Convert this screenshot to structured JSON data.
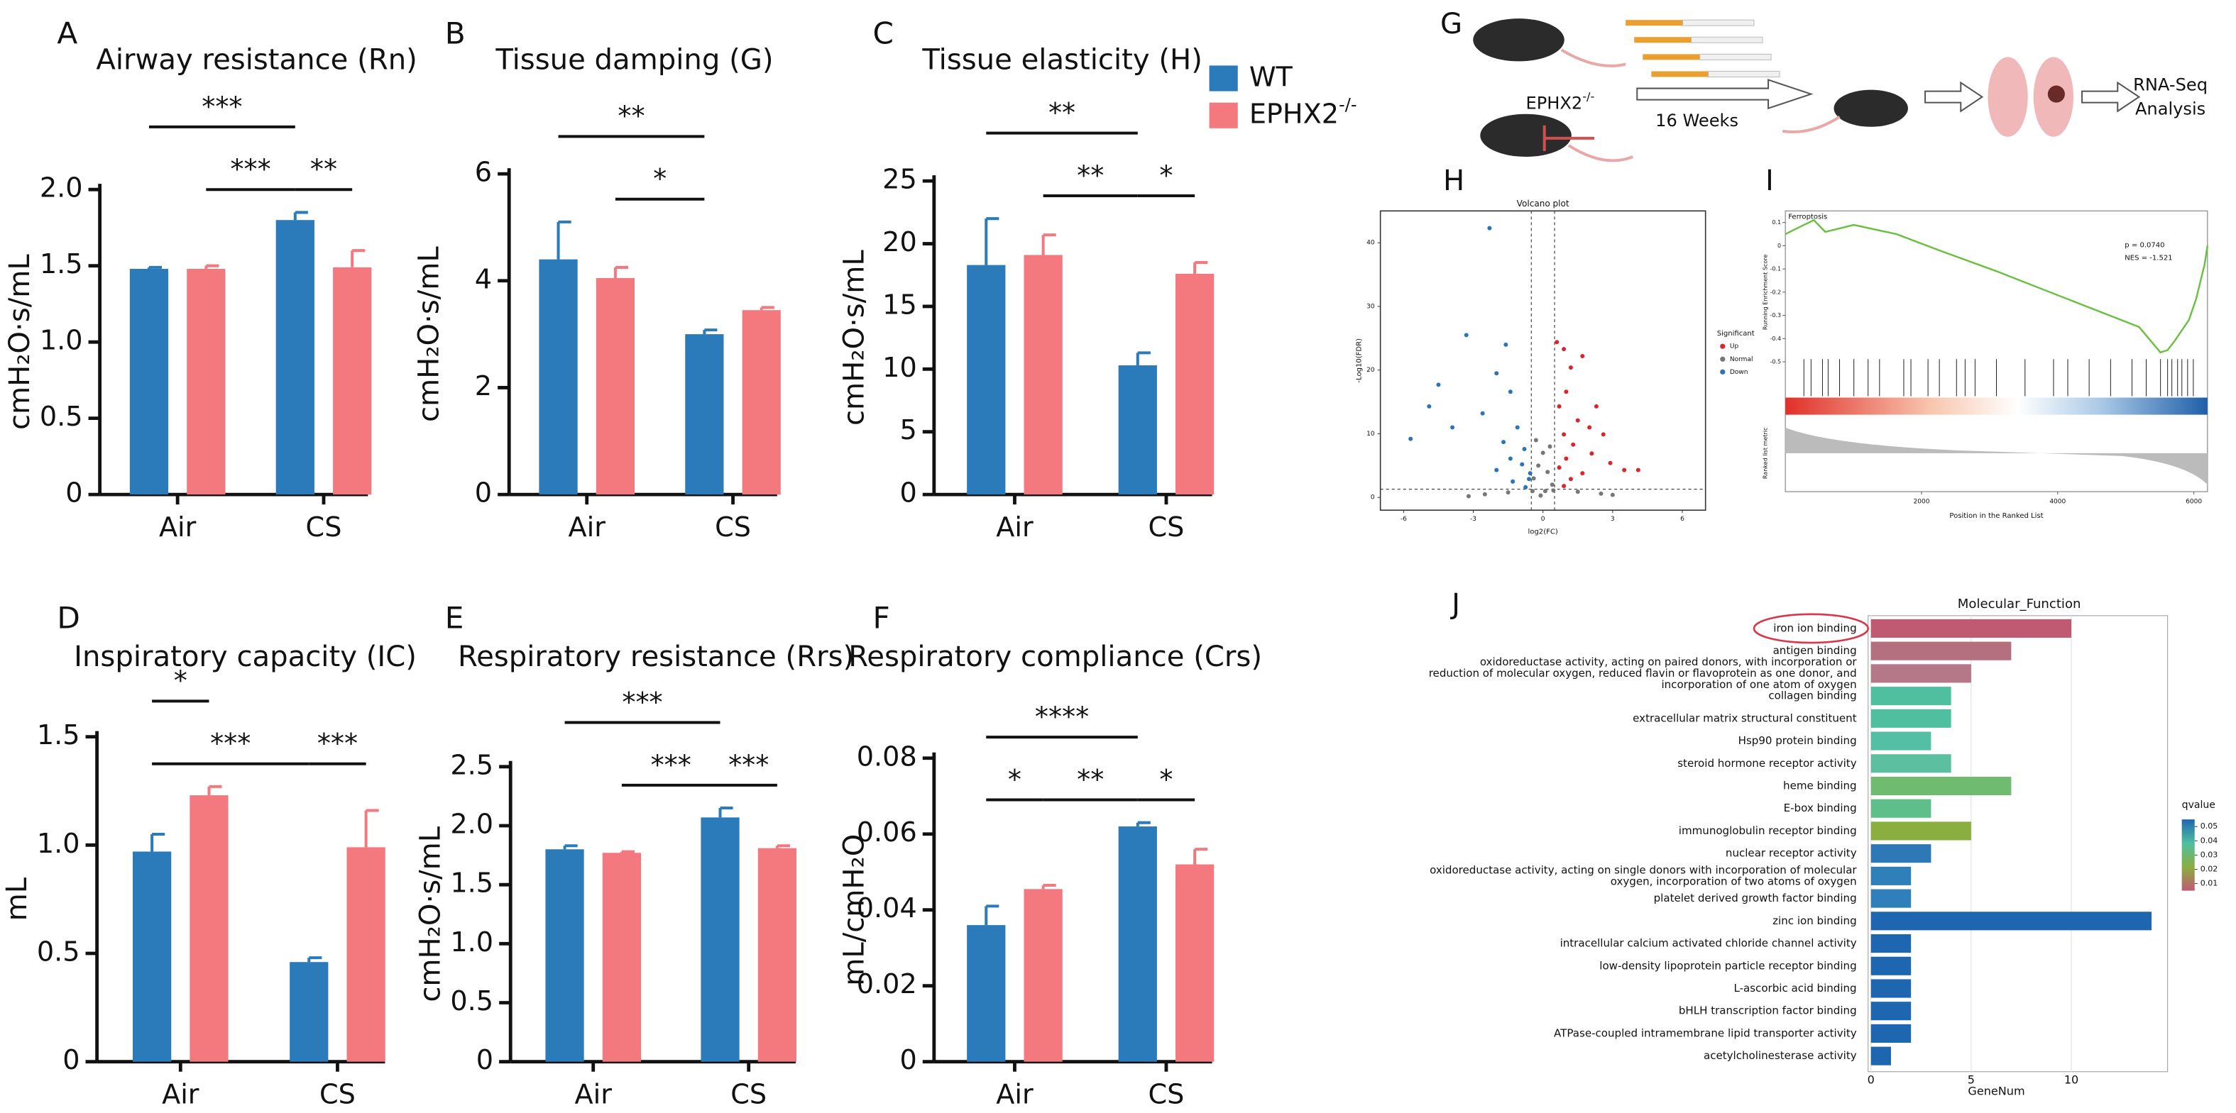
{
  "legend": {
    "items": [
      {
        "name": "WT",
        "color": "#2b7bba"
      },
      {
        "name": "EPHX2",
        "superscript": "-/-",
        "color": "#f4797f"
      }
    ]
  },
  "schematic": {
    "panel": "G",
    "genotype": "EPHX2",
    "superscript": "-/-",
    "duration": "16 Weeks",
    "output": [
      "RNA-Seq",
      "Analysis"
    ]
  },
  "chart_data": [
    {
      "type": "bar",
      "panel": "A",
      "title": "Airway resistance (Rn)",
      "ylabel": "cmH₂O·s/mL",
      "categories": [
        "Air",
        "CS"
      ],
      "series": [
        {
          "values": [
            1.48,
            1.8
          ],
          "errors": [
            0.01,
            0.05
          ]
        },
        {
          "values": [
            1.48,
            1.49
          ],
          "errors": [
            0.02,
            0.11
          ]
        }
      ],
      "ylim": [
        0,
        2
      ],
      "yticks": [
        0,
        0.5,
        {
          "value": 1,
          "label": "1.0"
        },
        1.5,
        {
          "value": 2,
          "label": "2.0"
        }
      ],
      "brackets": [
        {
          "between": [
            [
              0,
              1
            ],
            [
              1,
              0
            ]
          ],
          "label": "***"
        },
        {
          "between": [
            [
              1,
              0
            ],
            [
              1,
              1
            ]
          ],
          "label": "**"
        },
        {
          "between": [
            [
              0,
              0
            ],
            [
              1,
              0
            ]
          ],
          "label": "***"
        }
      ]
    },
    {
      "type": "bar",
      "panel": "B",
      "title": "Tissue damping (G)",
      "ylabel": "cmH₂O·s/mL",
      "categories": [
        "Air",
        "CS"
      ],
      "series": [
        {
          "values": [
            4.4,
            3.0
          ],
          "errors": [
            0.7,
            0.08
          ]
        },
        {
          "values": [
            4.05,
            3.45
          ],
          "errors": [
            0.2,
            0.05
          ]
        }
      ],
      "ylim": [
        0,
        6
      ],
      "yticks": [
        0,
        2,
        4,
        6
      ],
      "brackets": [
        {
          "between": [
            [
              0,
              1
            ],
            [
              1,
              0
            ]
          ],
          "label": "*"
        },
        {
          "between": [
            [
              0,
              0
            ],
            [
              1,
              0
            ]
          ],
          "label": "**"
        }
      ]
    },
    {
      "type": "bar",
      "panel": "C",
      "title": "Tissue elasticity (H)",
      "ylabel": "cmH₂O·s/mL",
      "categories": [
        "Air",
        "CS"
      ],
      "series": [
        {
          "values": [
            18.3,
            10.3
          ],
          "errors": [
            3.7,
            1.0
          ]
        },
        {
          "values": [
            19.1,
            17.6
          ],
          "errors": [
            1.6,
            0.9
          ]
        }
      ],
      "ylim": [
        0,
        25
      ],
      "yticks": [
        0,
        5,
        10,
        15,
        20,
        25
      ],
      "brackets": [
        {
          "between": [
            [
              0,
              1
            ],
            [
              1,
              0
            ]
          ],
          "label": "**"
        },
        {
          "between": [
            [
              1,
              0
            ],
            [
              1,
              1
            ]
          ],
          "label": "*"
        },
        {
          "between": [
            [
              0,
              0
            ],
            [
              1,
              0
            ]
          ],
          "label": "**"
        }
      ]
    },
    {
      "type": "bar",
      "panel": "D",
      "title": "Inspiratory capacity (IC)",
      "ylabel": "mL",
      "categories": [
        "Air",
        "CS"
      ],
      "series": [
        {
          "values": [
            0.97,
            0.46
          ],
          "errors": [
            0.08,
            0.02
          ]
        },
        {
          "values": [
            1.23,
            0.99
          ],
          "errors": [
            0.04,
            0.17
          ]
        }
      ],
      "ylim": [
        0,
        1.5
      ],
      "yticks": [
        0,
        0.5,
        {
          "value": 1,
          "label": "1.0"
        },
        1.5
      ],
      "brackets": [
        {
          "between": [
            [
              0,
              0
            ],
            [
              1,
              0
            ]
          ],
          "label": "***"
        },
        {
          "between": [
            [
              0,
              0
            ],
            [
              0,
              1
            ]
          ],
          "label": "*"
        },
        {
          "between": [
            [
              1,
              0
            ],
            [
              1,
              1
            ]
          ],
          "label": "***"
        }
      ]
    },
    {
      "type": "bar",
      "panel": "E",
      "title": "Respiratory resistance (Rrs)",
      "ylabel": "cmH₂O·s/mL",
      "categories": [
        "Air",
        "CS"
      ],
      "series": [
        {
          "values": [
            1.8,
            2.07
          ],
          "errors": [
            0.03,
            0.08
          ]
        },
        {
          "values": [
            1.77,
            1.81
          ],
          "errors": [
            0.01,
            0.02
          ]
        }
      ],
      "ylim": [
        0,
        2.5
      ],
      "yticks": [
        0,
        0.5,
        {
          "value": 1,
          "label": "1.0"
        },
        1.5,
        {
          "value": 2,
          "label": "2.0"
        },
        2.5
      ],
      "brackets": [
        {
          "between": [
            [
              0,
              1
            ],
            [
              1,
              0
            ]
          ],
          "label": "***"
        },
        {
          "between": [
            [
              1,
              0
            ],
            [
              1,
              1
            ]
          ],
          "label": "***"
        },
        {
          "between": [
            [
              0,
              0
            ],
            [
              1,
              0
            ]
          ],
          "label": "***"
        }
      ]
    },
    {
      "type": "bar",
      "panel": "F",
      "title": "Respiratory compliance (Crs)",
      "ylabel": "mL/cmH₂O",
      "categories": [
        "Air",
        "CS"
      ],
      "series": [
        {
          "values": [
            0.036,
            0.062
          ],
          "errors": [
            0.005,
            0.001
          ]
        },
        {
          "values": [
            0.0455,
            0.052
          ],
          "errors": [
            0.001,
            0.004
          ]
        }
      ],
      "ylim": [
        0,
        0.08
      ],
      "yticks": [
        0,
        0.02,
        0.04,
        0.06,
        0.08
      ],
      "brackets": [
        {
          "between": [
            [
              0,
              0
            ],
            [
              0,
              1
            ]
          ],
          "label": "*"
        },
        {
          "between": [
            [
              0,
              1
            ],
            [
              1,
              0
            ]
          ],
          "label": "**"
        },
        {
          "between": [
            [
              1,
              0
            ],
            [
              1,
              1
            ]
          ],
          "label": "*"
        },
        {
          "between": [
            [
              0,
              0
            ],
            [
              1,
              0
            ]
          ],
          "label": "****"
        }
      ]
    },
    {
      "type": "scatter",
      "panel": "H",
      "title": "Volcano plot",
      "xlabel": "log2(FC)",
      "ylabel": "-Log10(FDR)",
      "xlim": [
        -7,
        7
      ],
      "ylim": [
        -2,
        45
      ],
      "xticks": [
        -6,
        -3,
        0,
        3,
        6
      ],
      "yticks": [
        0,
        10,
        20,
        30,
        40
      ],
      "thresholds": {
        "x": [
          -0.5,
          0.5
        ],
        "y": 1.3
      },
      "legend_title": "Significant",
      "series": [
        {
          "name": "Up",
          "color": "#d7262e",
          "x": [
            0.6,
            0.9,
            1.7,
            1.2,
            2.3,
            1.0,
            0.7,
            1.5,
            2.0,
            2.6,
            0.9,
            1.3,
            2.1,
            1.0,
            2.9,
            0.7,
            1.7,
            3.5,
            1.2,
            4.1,
            0.9
          ],
          "y": [
            24.4,
            23.3,
            22.2,
            20.4,
            14.3,
            16.6,
            14.3,
            12.1,
            11.0,
            9.9,
            9.9,
            8.3,
            6.9,
            6.1,
            5.4,
            4.7,
            3.8,
            4.3,
            2.9,
            4.3,
            1.8
          ]
        },
        {
          "name": "Normal",
          "color": "#777777",
          "x": [
            -0.4,
            -0.2,
            0,
            0.2,
            0.4,
            -1.5,
            1.5,
            -2.5,
            2.5,
            -0.3,
            0.3,
            0.1,
            -0.1,
            -3.2,
            3.0,
            -0.45,
            0.45
          ],
          "y": [
            3,
            5,
            7,
            4,
            2,
            0.8,
            0.9,
            0.5,
            0.6,
            9,
            8,
            1,
            0.3,
            0.2,
            0.4,
            1,
            1.1
          ]
        },
        {
          "name": "Down",
          "color": "#2a74b8",
          "x": [
            -2.3,
            -3.3,
            -1.6,
            -2.0,
            -4.5,
            -1.4,
            -4.9,
            -5.7,
            -2.6,
            -3.9,
            -1.1,
            -1.7,
            -0.8,
            -1.4,
            -0.9,
            -2.0,
            -0.55,
            -0.6,
            -1.3,
            -0.75
          ],
          "y": [
            42.3,
            25.5,
            24.0,
            19.5,
            17.7,
            16.6,
            14.3,
            9.2,
            13.2,
            11.0,
            11.0,
            8.7,
            7.6,
            6.1,
            5.2,
            4.3,
            3.8,
            2.9,
            2.5,
            1.6
          ]
        }
      ]
    },
    {
      "type": "gsea",
      "panel": "I",
      "title": "Ferroptosis",
      "ylabel": "Running Enrichment Score",
      "ylabel2": "Ranked list metric",
      "xlabel": "Position in the Ranked List",
      "annotations": [
        "p = 0.0740",
        "NES = -1.521"
      ],
      "color": "#6abf40",
      "xlim": [
        0,
        6200
      ],
      "ylim": [
        -0.55,
        0.15
      ],
      "xticks": [
        2000,
        4000,
        6000
      ],
      "yticks": [
        0.1,
        0,
        -0.1,
        -0.2,
        -0.3,
        -0.4,
        -0.5
      ],
      "x": [
        0,
        272,
        419,
        587,
        1006,
        1634,
        2262,
        3100,
        4147,
        5195,
        5509,
        5614,
        5718,
        5928,
        6033,
        6158,
        6200
      ],
      "y": [
        0.05,
        0.09,
        0.11,
        0.06,
        0.09,
        0.05,
        -0.02,
        -0.11,
        -0.23,
        -0.35,
        -0.46,
        -0.45,
        -0.41,
        -0.32,
        -0.23,
        -0.08,
        0
      ],
      "hits": [
        272,
        377,
        545,
        628,
        796,
        1006,
        1215,
        1383,
        1739,
        1844,
        2095,
        2262,
        2514,
        2640,
        2786,
        3100,
        3520,
        3939,
        4148,
        4462,
        4777,
        5091,
        5300,
        5510,
        5614,
        5677,
        5761,
        5824,
        5908,
        5992
      ]
    },
    {
      "type": "hbar",
      "panel": "J",
      "title": "Molecular_Function",
      "xlabel": "GeneNum",
      "highlight": "iron ion binding",
      "categories": [
        "iron ion binding",
        "antigen binding",
        [
          "oxidoreductase activity, acting on paired donors, with incorporation or",
          "reduction of molecular oxygen, reduced flavin or flavoprotein as one donor, and",
          "incorporation of one atom of oxygen"
        ],
        "collagen binding",
        "extracellular matrix structural constituent",
        "Hsp90 protein binding",
        "steroid hormone receptor activity",
        "heme binding",
        "E-box binding",
        "immunoglobulin receptor binding",
        "nuclear receptor activity",
        [
          "oxidoreductase activity, acting on single donors with incorporation of molecular",
          "oxygen, incorporation of two atoms of oxygen"
        ],
        "platelet derived growth factor binding",
        "zinc ion binding",
        "intracellular calcium activated chloride channel activity",
        "low-density lipoprotein particle receptor binding",
        "L-ascorbic acid binding",
        "bHLH transcription factor binding",
        "ATPase-coupled intramembrane lipid transporter activity",
        "acetylcholinesterase activity"
      ],
      "values": [
        10,
        7,
        5,
        4,
        4,
        3,
        4,
        7,
        3,
        5,
        3,
        2,
        2,
        14,
        2,
        2,
        2,
        2,
        2,
        1
      ],
      "colors": [
        "#c05a72",
        "#b5707f",
        "#b47889",
        "#4fbf9f",
        "#4fbf9f",
        "#55bfa5",
        "#5cc0a0",
        "#6fbb70",
        "#5fbf8a",
        "#8aae40",
        "#2f78b8",
        "#2f7fbb",
        "#2f7fbb",
        "#1f66b0",
        "#1f66b0",
        "#1f66b0",
        "#1f66b0",
        "#1f66b0",
        "#1f66b0",
        "#1f66b0"
      ],
      "xlim": [
        0,
        14.8
      ],
      "xticks": [
        0,
        5,
        10
      ],
      "colorbar": {
        "title": "qvalue",
        "clim": [
          0.005,
          0.055
        ],
        "ticks": [
          0.05,
          0.04,
          0.03,
          0.02,
          0.01
        ],
        "colors": [
          "#1f66b0",
          "#4fbfa0",
          "#8aae40",
          "#c05a72"
        ]
      }
    }
  ]
}
